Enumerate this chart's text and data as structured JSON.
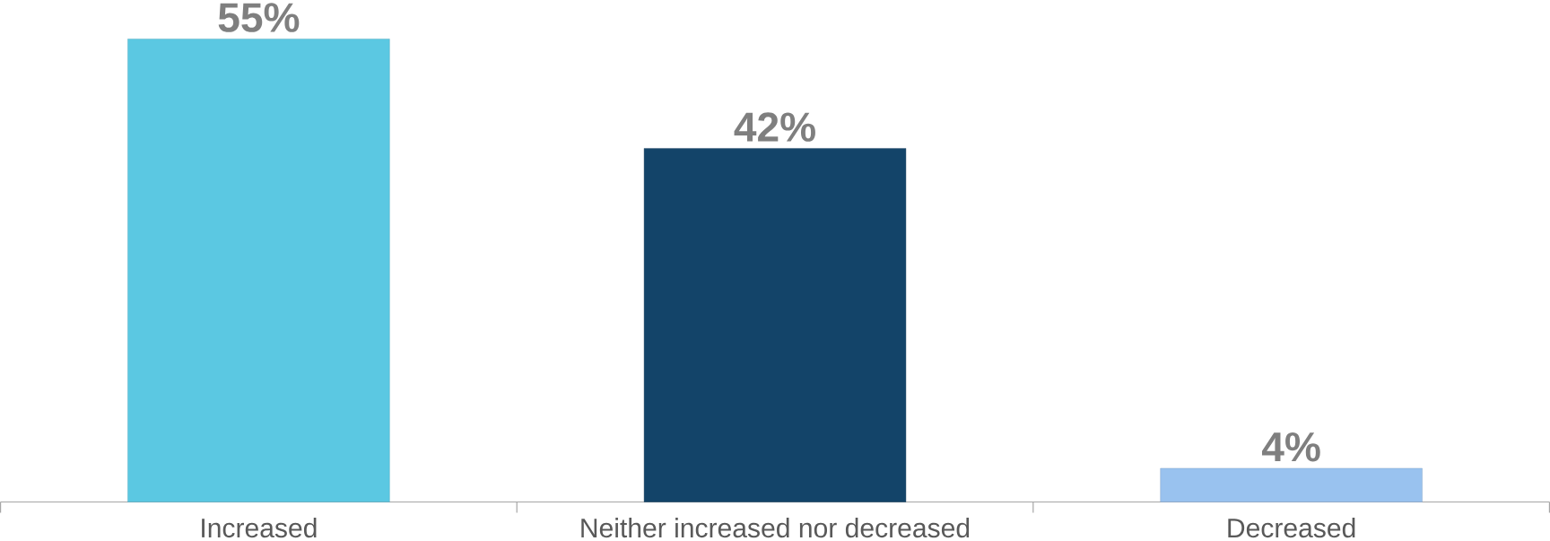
{
  "chart_data": {
    "type": "bar",
    "categories": [
      "Increased",
      "Neither increased nor decreased",
      "Decreased"
    ],
    "values": [
      55,
      42,
      4
    ],
    "colors": [
      "#5bc8e2",
      "#134469",
      "#99c2ef"
    ],
    "value_labels": [
      "55%",
      "42%",
      "4%"
    ]
  }
}
